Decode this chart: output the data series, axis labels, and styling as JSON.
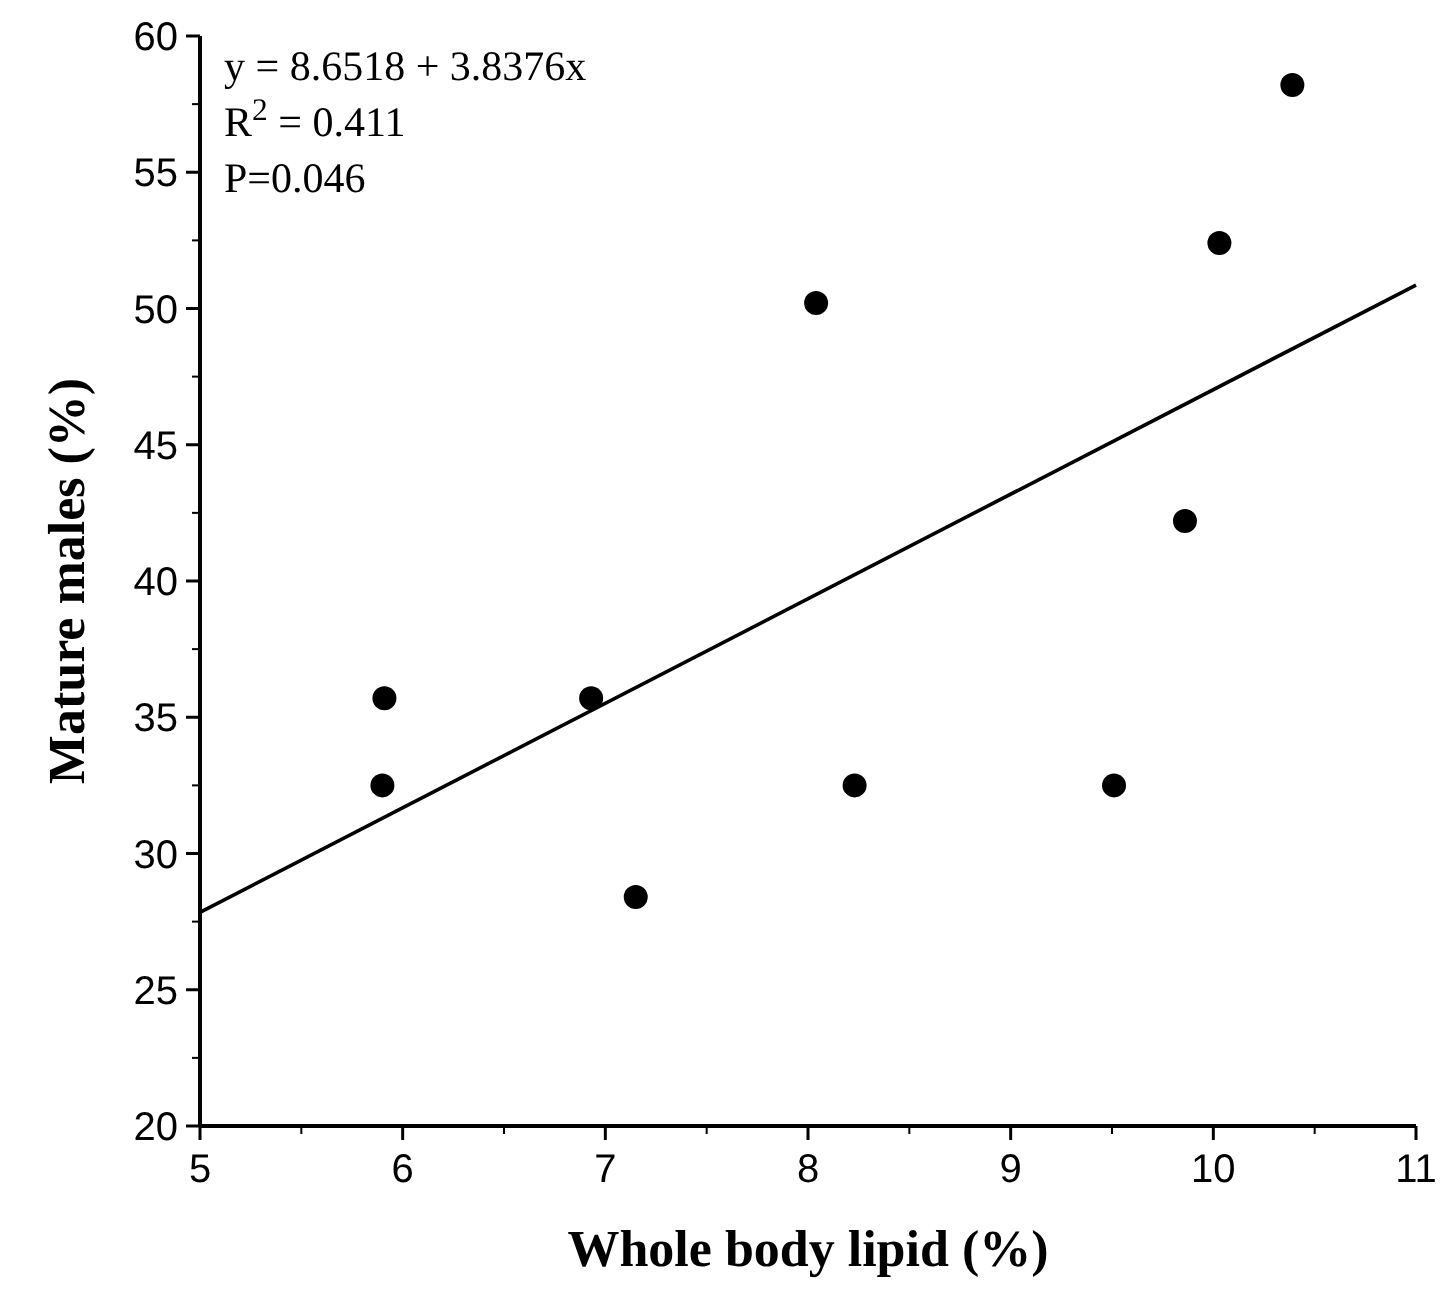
{
  "chart_data": {
    "type": "scatter",
    "xlabel": "Whole body lipid (%)",
    "ylabel": "Mature males (%)",
    "xlim": [
      5,
      11
    ],
    "xticks": [
      5,
      6,
      7,
      8,
      9,
      10,
      11
    ],
    "ylim": [
      20,
      60
    ],
    "yticks": [
      20,
      25,
      30,
      35,
      40,
      45,
      50,
      55,
      60
    ],
    "marker": "circle",
    "grid": false,
    "annotations": [
      "y = 8.6518 + 3.8376x",
      "R$^{2}$ = 0.411",
      "P=0.046"
    ],
    "series": [
      {
        "color": "#000000",
        "x": [
          5.91,
          5.9,
          6.93,
          7.15,
          8.23,
          9.51,
          8.04,
          9.86,
          10.03,
          10.39
        ],
        "values": [
          35.7,
          32.5,
          35.7,
          28.4,
          32.5,
          32.5,
          50.2,
          42.2,
          52.4,
          58.2
        ]
      },
      {
        "type": "line",
        "color": "#000000",
        "marker": "none",
        "x": [
          5,
          11
        ],
        "values": [
          27.84,
          50.86
        ]
      }
    ]
  }
}
